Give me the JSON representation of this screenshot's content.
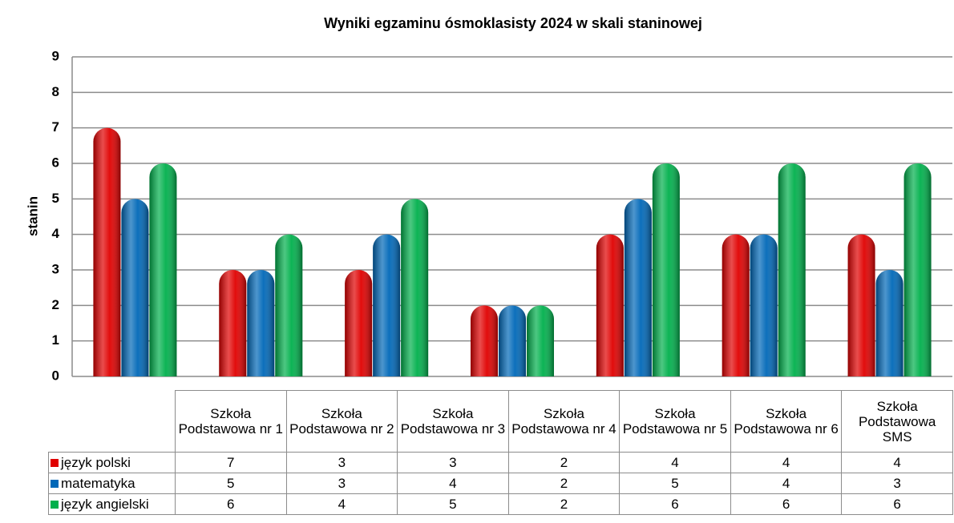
{
  "chart_data": {
    "type": "bar",
    "title": "Wyniki egzaminu ósmoklasisty 2024 w skali staninowej",
    "y_label": "stanin",
    "categories": [
      "Szkoła Podstawowa nr 1",
      "Szkoła Podstawowa nr 2",
      "Szkoła Podstawowa nr 3",
      "Szkoła Podstawowa nr 4",
      "Szkoła Podstawowa nr 5",
      "Szkoła Podstawowa nr 6",
      "Szkoła Podstawowa SMS"
    ],
    "series": [
      {
        "name": "język polski",
        "color": "#e00000",
        "values": [
          7,
          3,
          3,
          2,
          4,
          4,
          4
        ]
      },
      {
        "name": "matematyka",
        "color": "#0068b8",
        "values": [
          5,
          3,
          4,
          2,
          5,
          4,
          3
        ]
      },
      {
        "name": "język angielski",
        "color": "#00b04c",
        "values": [
          6,
          4,
          5,
          2,
          6,
          6,
          6
        ]
      }
    ],
    "ylim": [
      0,
      9
    ],
    "yticks": [
      0,
      1,
      2,
      3,
      4,
      5,
      6,
      7,
      8,
      9
    ],
    "grid": true
  }
}
